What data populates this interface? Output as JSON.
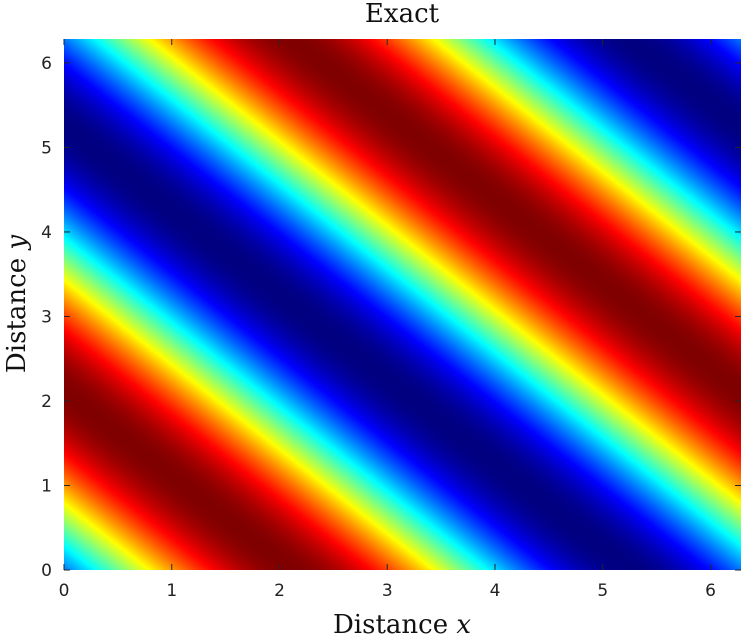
{
  "chart_data": {
    "type": "heatmap",
    "title": "Exact",
    "xlabel": {
      "text": "Distance ",
      "variable": "x"
    },
    "ylabel": {
      "text": "Distance ",
      "variable": "y"
    },
    "xlim": [
      0,
      6.2832
    ],
    "ylim": [
      0,
      6.2832
    ],
    "xticks": [
      0,
      1,
      2,
      3,
      4,
      5,
      6
    ],
    "yticks": [
      0,
      1,
      2,
      3,
      4,
      5,
      6
    ],
    "xtick_labels": [
      "0",
      "1",
      "2",
      "3",
      "4",
      "5",
      "6"
    ],
    "ytick_labels": [
      "0",
      "1",
      "2",
      "3",
      "4",
      "5",
      "6"
    ],
    "field": "sin(x + y - 0.54)",
    "value_range": [
      -1,
      1
    ],
    "colormap": "jet",
    "grid": false,
    "legend": "none"
  }
}
